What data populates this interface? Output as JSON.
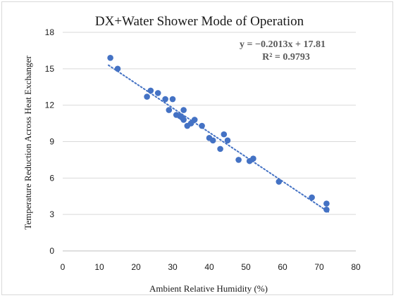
{
  "chart_data": {
    "type": "scatter",
    "title": "DX+Water Shower Mode of Operation",
    "xlabel": "Ambient Relative Humidity (%)",
    "ylabel": "Temperature Reduction Across Heat Exchanger",
    "xlim": [
      0,
      80
    ],
    "ylim": [
      0,
      18
    ],
    "xticks": [
      "0",
      "10",
      "20",
      "30",
      "40",
      "50",
      "60",
      "70",
      "80"
    ],
    "yticks": [
      "0",
      "3",
      "6",
      "9",
      "12",
      "15",
      "18"
    ],
    "grid": true,
    "legend": "none",
    "colors": {
      "points": "#4472c4",
      "trendline": "#4472c4",
      "grid": "#d9d9d9"
    },
    "points": [
      {
        "x": 13,
        "y": 15.9
      },
      {
        "x": 15,
        "y": 15.0
      },
      {
        "x": 23,
        "y": 12.7
      },
      {
        "x": 24,
        "y": 13.2
      },
      {
        "x": 26,
        "y": 13.0
      },
      {
        "x": 28,
        "y": 12.5
      },
      {
        "x": 29,
        "y": 11.6
      },
      {
        "x": 30,
        "y": 12.5
      },
      {
        "x": 31,
        "y": 11.2
      },
      {
        "x": 32,
        "y": 11.1
      },
      {
        "x": 32.5,
        "y": 11.0
      },
      {
        "x": 33,
        "y": 11.6
      },
      {
        "x": 33,
        "y": 10.8
      },
      {
        "x": 34,
        "y": 10.3
      },
      {
        "x": 35,
        "y": 10.5
      },
      {
        "x": 36,
        "y": 10.8
      },
      {
        "x": 38,
        "y": 10.3
      },
      {
        "x": 40,
        "y": 9.3
      },
      {
        "x": 41,
        "y": 9.1
      },
      {
        "x": 43,
        "y": 8.4
      },
      {
        "x": 44,
        "y": 9.6
      },
      {
        "x": 45,
        "y": 9.1
      },
      {
        "x": 48,
        "y": 7.5
      },
      {
        "x": 51,
        "y": 7.4
      },
      {
        "x": 52,
        "y": 7.6
      },
      {
        "x": 59,
        "y": 5.7
      },
      {
        "x": 68,
        "y": 4.4
      },
      {
        "x": 72,
        "y": 3.9
      },
      {
        "x": 72,
        "y": 3.4
      }
    ],
    "trendline": {
      "type": "linear",
      "slope": -0.2013,
      "intercept": 17.81,
      "x_range": [
        12.5,
        72.5
      ],
      "equation": "y = −0.2013x + 17.81",
      "r_squared": "R² = 0.9793"
    }
  }
}
